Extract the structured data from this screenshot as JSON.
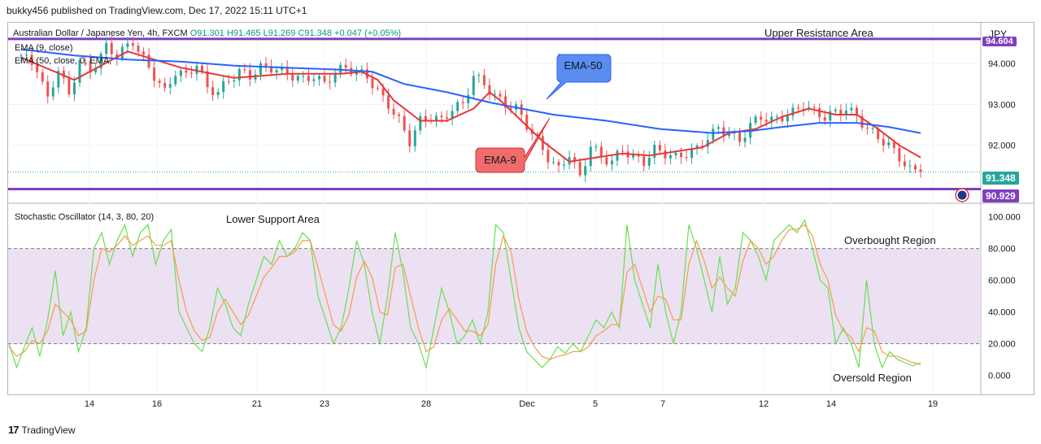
{
  "header": {
    "published": "bukky456 published on TradingView.com, Dec 17, 2022 15:11 UTC+1"
  },
  "legend": {
    "symbol": "Australian Dollar / Japanese Yen, 4h, FXCM",
    "ohlc": "O91.301  H91.465  L91.269  C91.348  +0.047 (+0.05%)",
    "ema9": "EMA (9, close)",
    "ema50": "EMA (50, close, 0, EMA,",
    "stoch": "Stochastic Oscillator (14, 3, 80, 20)"
  },
  "annotations": {
    "upper": "Upper Resistance Area",
    "lower": "Lower Support Area",
    "overbought": "Overbought Region",
    "oversold": "Oversold Region",
    "ema50_label": "EMA-50",
    "ema9_label": "EMA-9"
  },
  "price_axis": {
    "currency": "JPY",
    "current": "91.348",
    "support": "90.929",
    "resistance": "94.604"
  },
  "footer": {
    "brand": "TradingView"
  },
  "colors": {
    "up": "#26a69a",
    "down": "#ef5350",
    "ema9": "#e5383b",
    "ema50": "#2962ff",
    "level": "#7e3fbf",
    "stochK": "#66e050",
    "stochD": "#f59c4b",
    "band": "#e9dcf0"
  },
  "chart_data": [
    {
      "type": "candlestick",
      "title": "Australian Dollar / Japanese Yen, 4h, FXCM",
      "x_tick_labels": [
        "14",
        "16",
        "21",
        "23",
        "28",
        "Dec",
        "5",
        "7",
        "12",
        "14",
        "19"
      ],
      "y_ticks": [
        92.0,
        93.0,
        94.0
      ],
      "ylim": [
        90.6,
        95.0
      ],
      "horizontal_levels": [
        {
          "name": "Upper Resistance Area",
          "value": 94.604
        },
        {
          "name": "Lower Support Area",
          "value": 90.929
        }
      ],
      "last_price": 91.348,
      "close_path": [
        [
          0,
          94.2
        ],
        [
          3,
          93.9
        ],
        [
          5,
          93.1
        ],
        [
          7,
          93.9
        ],
        [
          9,
          93.2
        ],
        [
          11,
          94.1
        ],
        [
          13,
          93.8
        ],
        [
          16,
          94.4
        ],
        [
          18,
          94.2
        ],
        [
          21,
          94.55
        ],
        [
          23,
          94.1
        ],
        [
          25,
          93.7
        ],
        [
          27,
          93.3
        ],
        [
          29,
          93.8
        ],
        [
          31,
          93.7
        ],
        [
          33,
          94.0
        ],
        [
          35,
          93.4
        ],
        [
          37,
          93.3
        ],
        [
          39,
          93.6
        ],
        [
          41,
          93.8
        ],
        [
          43,
          93.7
        ],
        [
          45,
          93.9
        ],
        [
          47,
          93.9
        ],
        [
          49,
          93.8
        ],
        [
          51,
          93.7
        ],
        [
          53,
          93.6
        ],
        [
          55,
          93.7
        ],
        [
          57,
          93.5
        ],
        [
          59,
          93.8
        ],
        [
          61,
          93.9
        ],
        [
          63,
          93.8
        ],
        [
          65,
          93.7
        ],
        [
          67,
          93.3
        ],
        [
          69,
          93.0
        ],
        [
          71,
          92.6
        ],
        [
          73,
          92.1
        ],
        [
          75,
          92.6
        ],
        [
          77,
          92.7
        ],
        [
          79,
          92.6
        ],
        [
          81,
          92.9
        ],
        [
          83,
          93.0
        ],
        [
          85,
          93.7
        ],
        [
          87,
          93.5
        ],
        [
          89,
          93.2
        ],
        [
          91,
          93.0
        ],
        [
          93,
          92.9
        ],
        [
          95,
          92.5
        ],
        [
          97,
          92.1
        ],
        [
          99,
          91.7
        ],
        [
          101,
          91.4
        ],
        [
          103,
          91.8
        ],
        [
          105,
          91.2
        ],
        [
          107,
          92.0
        ],
        [
          109,
          91.7
        ],
        [
          111,
          91.6
        ],
        [
          113,
          91.9
        ],
        [
          115,
          91.7
        ],
        [
          117,
          91.6
        ],
        [
          119,
          91.9
        ],
        [
          121,
          91.8
        ],
        [
          123,
          91.7
        ],
        [
          125,
          91.8
        ],
        [
          127,
          91.9
        ],
        [
          129,
          92.2
        ],
        [
          131,
          92.4
        ],
        [
          133,
          92.3
        ],
        [
          135,
          92.1
        ],
        [
          137,
          92.5
        ],
        [
          139,
          92.7
        ],
        [
          141,
          92.6
        ],
        [
          143,
          92.7
        ],
        [
          145,
          92.8
        ],
        [
          147,
          93.0
        ],
        [
          149,
          92.8
        ],
        [
          151,
          92.7
        ],
        [
          153,
          92.8
        ],
        [
          155,
          92.9
        ],
        [
          157,
          92.7
        ],
        [
          159,
          92.4
        ],
        [
          161,
          92.2
        ],
        [
          163,
          92.0
        ],
        [
          165,
          91.7
        ],
        [
          167,
          91.4
        ],
        [
          169,
          91.348
        ]
      ],
      "series": [
        {
          "name": "EMA (9, close)",
          "label": "EMA-9",
          "points": [
            [
              0,
              94.15
            ],
            [
              10,
              93.6
            ],
            [
              20,
              94.3
            ],
            [
              30,
              93.9
            ],
            [
              40,
              93.65
            ],
            [
              50,
              93.75
            ],
            [
              60,
              93.75
            ],
            [
              64,
              93.8
            ],
            [
              67,
              93.6
            ],
            [
              70,
              93.1
            ],
            [
              75,
              92.6
            ],
            [
              80,
              92.6
            ],
            [
              85,
              92.9
            ],
            [
              88,
              93.3
            ],
            [
              90,
              93.1
            ],
            [
              94,
              92.6
            ],
            [
              98,
              92.1
            ],
            [
              103,
              91.6
            ],
            [
              108,
              91.7
            ],
            [
              113,
              91.8
            ],
            [
              118,
              91.75
            ],
            [
              123,
              91.85
            ],
            [
              128,
              91.95
            ],
            [
              133,
              92.3
            ],
            [
              138,
              92.4
            ],
            [
              143,
              92.7
            ],
            [
              148,
              92.9
            ],
            [
              153,
              92.75
            ],
            [
              157,
              92.75
            ],
            [
              161,
              92.4
            ],
            [
              165,
              92.0
            ],
            [
              169,
              91.7
            ]
          ]
        },
        {
          "name": "EMA (50, close, 0, EMA,",
          "label": "EMA-50",
          "points": [
            [
              0,
              94.35
            ],
            [
              10,
              94.2
            ],
            [
              20,
              94.1
            ],
            [
              30,
              94.05
            ],
            [
              40,
              93.95
            ],
            [
              50,
              93.9
            ],
            [
              60,
              93.85
            ],
            [
              66,
              93.8
            ],
            [
              72,
              93.5
            ],
            [
              80,
              93.3
            ],
            [
              88,
              93.05
            ],
            [
              94,
              92.9
            ],
            [
              100,
              92.75
            ],
            [
              110,
              92.6
            ],
            [
              120,
              92.4
            ],
            [
              130,
              92.3
            ],
            [
              137,
              92.35
            ],
            [
              143,
              92.45
            ],
            [
              150,
              92.55
            ],
            [
              157,
              92.55
            ],
            [
              163,
              92.45
            ],
            [
              169,
              92.3
            ]
          ]
        }
      ]
    },
    {
      "type": "line",
      "title": "Stochastic Oscillator (14, 3, 80, 20)",
      "y_ticks": [
        0,
        20,
        40,
        60,
        80,
        100
      ],
      "ylim": [
        -12,
        108
      ],
      "bands": {
        "upper": 80,
        "lower": 20
      },
      "series": [
        {
          "name": "%K",
          "color": "#66e050",
          "values": [
            20,
            5,
            18,
            30,
            12,
            35,
            66,
            25,
            40,
            15,
            30,
            80,
            90,
            70,
            85,
            95,
            75,
            90,
            95,
            70,
            85,
            92,
            40,
            30,
            20,
            15,
            30,
            55,
            45,
            30,
            25,
            45,
            60,
            75,
            70,
            85,
            75,
            80,
            90,
            85,
            50,
            35,
            20,
            30,
            55,
            85,
            70,
            40,
            20,
            50,
            90,
            65,
            30,
            20,
            5,
            30,
            55,
            40,
            20,
            25,
            35,
            20,
            40,
            95,
            90,
            60,
            30,
            15,
            10,
            5,
            10,
            18,
            14,
            20,
            15,
            25,
            35,
            30,
            40,
            30,
            95,
            60,
            45,
            30,
            70,
            40,
            20,
            40,
            95,
            80,
            60,
            40,
            75,
            45,
            55,
            90,
            85,
            75,
            60,
            85,
            90,
            95,
            90,
            98,
            80,
            60,
            55,
            20,
            30,
            20,
            5,
            60,
            20,
            5,
            15,
            10,
            8,
            6,
            8
          ]
        },
        {
          "name": "%D",
          "color": "#f59c4b",
          "values": [
            18,
            12,
            15,
            22,
            20,
            28,
            45,
            40,
            35,
            25,
            28,
            60,
            80,
            78,
            82,
            88,
            82,
            85,
            88,
            82,
            82,
            85,
            60,
            40,
            28,
            22,
            24,
            40,
            48,
            40,
            32,
            38,
            50,
            62,
            68,
            75,
            75,
            78,
            85,
            85,
            68,
            50,
            32,
            28,
            38,
            62,
            72,
            62,
            40,
            38,
            68,
            70,
            50,
            30,
            15,
            18,
            35,
            42,
            35,
            28,
            28,
            25,
            32,
            70,
            88,
            78,
            48,
            28,
            18,
            12,
            10,
            12,
            13,
            15,
            15,
            18,
            25,
            28,
            32,
            32,
            65,
            70,
            55,
            40,
            50,
            48,
            35,
            35,
            70,
            85,
            72,
            55,
            62,
            55,
            50,
            72,
            85,
            80,
            70,
            75,
            85,
            92,
            92,
            95,
            88,
            70,
            60,
            38,
            28,
            24,
            15,
            30,
            28,
            15,
            12,
            12,
            10,
            8,
            7
          ]
        }
      ]
    }
  ]
}
